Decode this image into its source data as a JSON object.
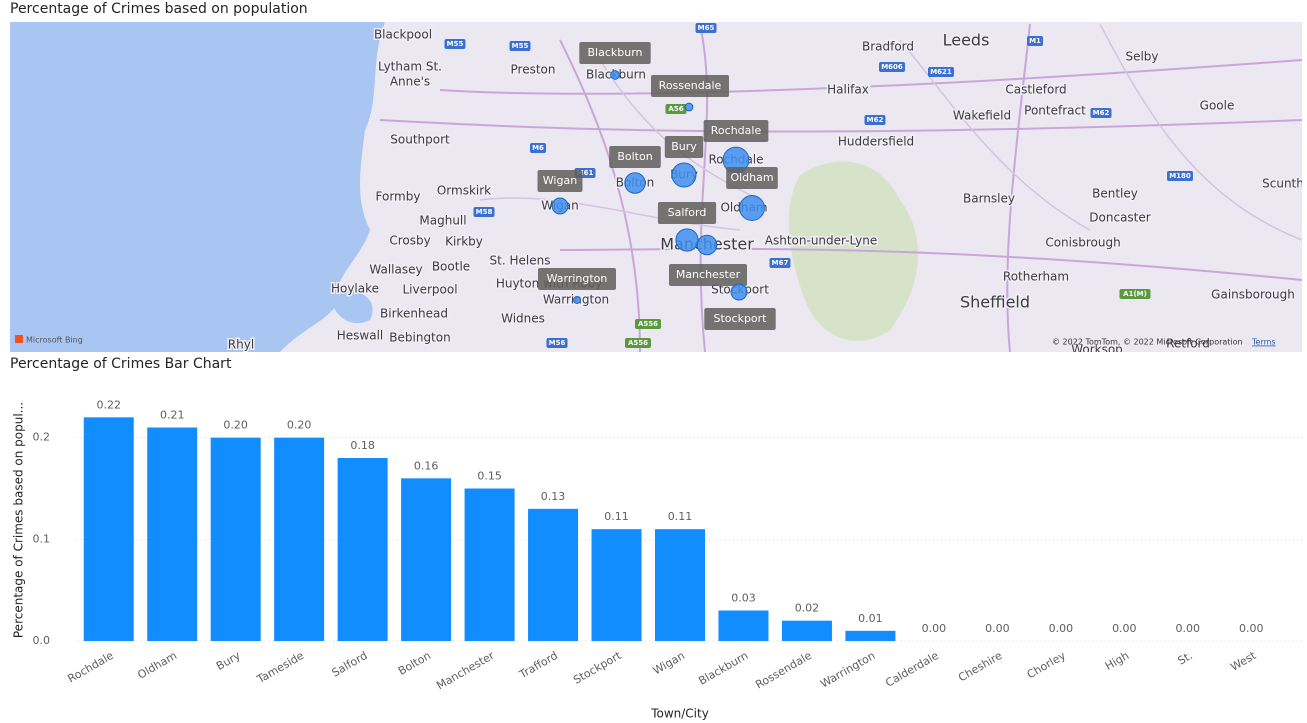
{
  "map": {
    "title": "Percentage of Crimes based on population",
    "places": [
      "Blackpool",
      "Lytham St.",
      "Anne's",
      "Preston",
      "Blackburn",
      "Bradford",
      "Leeds",
      "Selby",
      "Castleford",
      "Halifax",
      "Pontefract",
      "Goole",
      "Wakefield",
      "Huddersfield",
      "Southport",
      "Rochdale",
      "Bolton",
      "Bury",
      "Oldham",
      "Wigan",
      "Formby",
      "Ormskirk",
      "Maghull",
      "Crosby",
      "Kirkby",
      "Manchester",
      "Ashton-under-Lyne",
      "Wallasey",
      "Bootle",
      "St. Helens",
      "Hoylake",
      "Liverpool",
      "Huyton with Roby",
      "Warrington",
      "Stockport",
      "Birkenhead",
      "Widnes",
      "Heswall",
      "Bebington",
      "Rhyl",
      "Barnsley",
      "Bentley",
      "Doncaster",
      "Conisbrough",
      "Rotherham",
      "Sheffield",
      "Gainsborough",
      "Scunth",
      "Worksop",
      "Retford"
    ],
    "roads": [
      "M55",
      "M55",
      "M65",
      "M606",
      "M621",
      "M1",
      "M62",
      "M62",
      "M6",
      "M58",
      "M61",
      "M67",
      "M180",
      "A1(M)",
      "M56",
      "A556",
      "A56",
      "A556"
    ],
    "markers": [
      "Blackburn",
      "Rossendale",
      "Rochdale",
      "Bury",
      "Bolton",
      "Wigan",
      "Oldham",
      "Salford",
      "Manchester",
      "Warrington",
      "Stockport"
    ],
    "logo": "Microsoft Bing",
    "attribution": "© 2022 TomTom, © 2022 Microsoft Corporation",
    "terms": "Terms"
  },
  "chart_data": {
    "type": "bar",
    "title": "Percentage of Crimes Bar Chart",
    "x_label": "Town/City",
    "y_label": "Percentage of Crimes based on popul...",
    "categories": [
      "Rochdale",
      "Oldham",
      "Bury",
      "Tameside",
      "Salford",
      "Bolton",
      "Manchester",
      "Trafford",
      "Stockport",
      "Wigan",
      "Blackburn",
      "Rossendale",
      "Warrington",
      "Calderdale",
      "Cheshire",
      "Chorley",
      "High",
      "St.",
      "West"
    ],
    "values": [
      0.22,
      0.21,
      0.2,
      0.2,
      0.18,
      0.16,
      0.15,
      0.13,
      0.11,
      0.11,
      0.03,
      0.02,
      0.01,
      0,
      0,
      0,
      0,
      0,
      0
    ],
    "value_labels": [
      "0.22",
      "0.21",
      "0.20",
      "0.20",
      "0.18",
      "0.16",
      "0.15",
      "0.13",
      "0.11",
      "0.11",
      "0.03",
      "0.02",
      "0.01",
      "0.00",
      "0.00",
      "0.00",
      "0.00",
      "0.00",
      "0.00"
    ],
    "color": "#118dff",
    "ylim": [
      0,
      0.24
    ],
    "yticks": [
      {
        "value": 0,
        "label": "0.0"
      },
      {
        "value": 0.1,
        "label": "0.1"
      },
      {
        "value": 0.2,
        "label": "0.2"
      }
    ],
    "grid": true
  }
}
